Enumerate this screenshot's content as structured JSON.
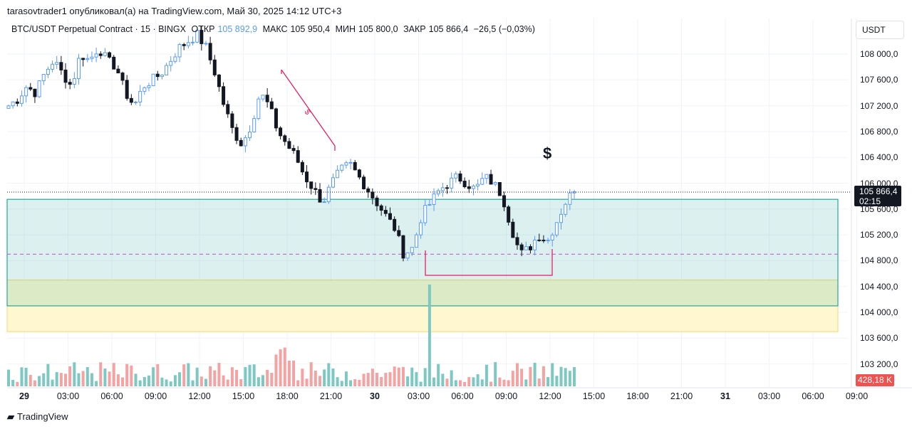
{
  "header": {
    "published_line": "tarasovtrader1 опубликовал(а) на TradingView.com, Май 30, 2025 14:12 UTC+3"
  },
  "legend": {
    "symbol": "BTC/USDT Perpetual Contract · 15 · BINGX",
    "open_label": "ОТКР",
    "open_value": "105 892,9",
    "high_label": "МАКС",
    "high_value": "105 950,4",
    "low_label": "МИН",
    "low_value": "105 800,0",
    "close_label": "ЗАКР",
    "close_value": "105 866,4",
    "change": "−26,5 (−0,03%)"
  },
  "currency_button": "USDT",
  "price_axis": [
    "108 000,0",
    "107 600,0",
    "107 200,0",
    "106 800,0",
    "106 400,0",
    "106 000,0",
    "105 600,0",
    "105 200,0",
    "104 800,0",
    "104 400,0",
    "104 000,0",
    "103 600,0",
    "103 200,0"
  ],
  "last_price": {
    "price": "105 866,4",
    "countdown": "02:15"
  },
  "volume_label": "428,18 K",
  "time_axis": [
    {
      "label": "29",
      "bold": true
    },
    {
      "label": "03:00"
    },
    {
      "label": "06:00"
    },
    {
      "label": "09:00"
    },
    {
      "label": "12:00"
    },
    {
      "label": "15:00"
    },
    {
      "label": "18:00"
    },
    {
      "label": "21:00"
    },
    {
      "label": "30",
      "bold": true
    },
    {
      "label": "03:00"
    },
    {
      "label": "06:00"
    },
    {
      "label": "09:00"
    },
    {
      "label": "12:00"
    },
    {
      "label": "15:00"
    },
    {
      "label": "18:00"
    },
    {
      "label": "21:00"
    },
    {
      "label": "31",
      "bold": true
    },
    {
      "label": "03:00"
    },
    {
      "label": "06:00"
    },
    {
      "label": "09:00"
    }
  ],
  "annotation": {
    "dollar_symbol": "$",
    "trendline_marker": "$"
  },
  "colors": {
    "up": "#5b9cf6",
    "down": "#131722",
    "vol_up": "#7ec8c4",
    "vol_down": "#f4a3a3",
    "zone_teal": "#26a69a",
    "zone_yellow": "#f7d774",
    "trend": "#e91e63",
    "dash": "#ba68c8"
  },
  "footer": {
    "brand": "TradingView"
  },
  "chart_data": {
    "type": "candlestick",
    "interval": "15",
    "ylim": [
      103000,
      108300
    ],
    "zones": [
      {
        "name": "",
        "from": 104100,
        "to": 105750,
        "color": "teal"
      },
      {
        "name": "",
        "from": 103700,
        "to": 104500,
        "color": "yellow"
      }
    ],
    "dashed_level": 104900,
    "close_path": [
      107200,
      107300,
      107500,
      107400,
      107700,
      107900,
      107700,
      107500,
      108000,
      107900,
      108100,
      107900,
      107800,
      107400,
      107200,
      107500,
      107600,
      107700,
      107900,
      108100,
      108200,
      108300,
      108100,
      107700,
      107200,
      106800,
      106600,
      106900,
      107400,
      107200,
      106800,
      106600,
      106400,
      106100,
      105900,
      105700,
      106000,
      106200,
      106300,
      106100,
      105900,
      105700,
      105500,
      105300,
      104900,
      105000,
      105500,
      105700,
      105900,
      106000,
      106100,
      106000,
      105900,
      106100,
      106000,
      105800,
      105300,
      104900,
      105000,
      105200,
      105100,
      105400,
      105700,
      105900
    ]
  }
}
